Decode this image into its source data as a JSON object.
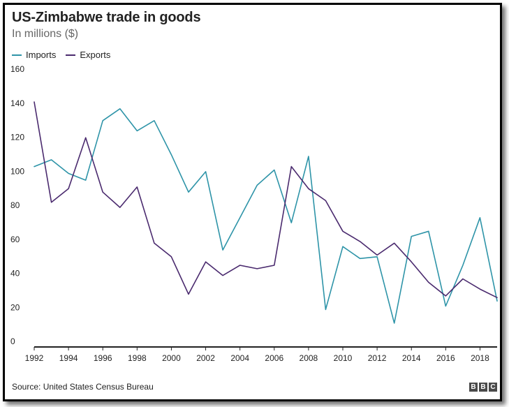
{
  "chart_data": {
    "type": "line",
    "title": "US-Zimbabwe trade in goods",
    "subtitle": "In millions ($)",
    "legend_position": "top-left",
    "source": "Source: United States Census Bureau",
    "logo": "BBC",
    "x": [
      1992,
      1993,
      1994,
      1995,
      1996,
      1997,
      1998,
      1999,
      2000,
      2001,
      2002,
      2003,
      2004,
      2005,
      2006,
      2007,
      2008,
      2009,
      2010,
      2011,
      2012,
      2013,
      2014,
      2015,
      2016,
      2017,
      2018,
      2019
    ],
    "xticks": [
      "1992",
      "1994",
      "1996",
      "1998",
      "2000",
      "2002",
      "2004",
      "2006",
      "2008",
      "2010",
      "2012",
      "2014",
      "2016",
      "2018"
    ],
    "xlim": [
      1992,
      2019
    ],
    "ylim": [
      0,
      160
    ],
    "yticks": [
      "0",
      "20",
      "40",
      "60",
      "80",
      "100",
      "120",
      "140",
      "160"
    ],
    "grid": false,
    "series": [
      {
        "name": "Imports",
        "color": "#2e94a8",
        "values": [
          106,
          110,
          102,
          98,
          133,
          140,
          127,
          133,
          113,
          91,
          103,
          57,
          76,
          95,
          104,
          73,
          112,
          22,
          59,
          52,
          53,
          14,
          65,
          68,
          24,
          48,
          76,
          27
        ]
      },
      {
        "name": "Exports",
        "color": "#4a2a6e",
        "values": [
          144,
          85,
          93,
          123,
          91,
          82,
          94,
          61,
          53,
          31,
          50,
          42,
          48,
          46,
          48,
          106,
          93,
          86,
          68,
          62,
          54,
          61,
          50,
          38,
          30,
          40,
          34,
          29
        ]
      }
    ]
  }
}
